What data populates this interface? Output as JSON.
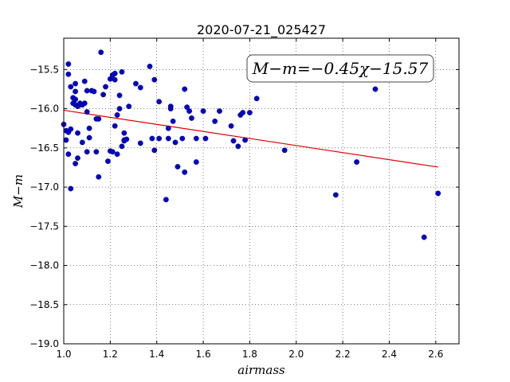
{
  "chart_data": {
    "type": "scatter",
    "title": "2020-07-21_025427",
    "xlabel": "airmass",
    "ylabel": "M−m",
    "xlim": [
      1.0,
      2.7
    ],
    "ylim": [
      -19.0,
      -15.1
    ],
    "invert_y": true,
    "grid": true,
    "x_ticks": [
      1.0,
      1.2,
      1.4,
      1.6,
      1.8,
      2.0,
      2.2,
      2.4,
      2.6
    ],
    "x_tick_labels": [
      "1.0",
      "1.2",
      "1.4",
      "1.6",
      "1.8",
      "2.0",
      "2.2",
      "2.4",
      "2.6"
    ],
    "y_ticks": [
      -15.5,
      -16.0,
      -16.5,
      -17.0,
      -17.5,
      -18.0,
      -18.5,
      -19.0
    ],
    "y_tick_labels": [
      "−15.5",
      "−16.0",
      "−16.5",
      "−17.0",
      "−17.5",
      "−18.0",
      "−18.5",
      "−19.0"
    ],
    "annotation": "M−m=−0.45χ−15.57",
    "colors": {
      "points": "#0000cc",
      "fit": "#e00000"
    },
    "fit": {
      "slope": -0.45,
      "intercept": -15.57,
      "x_range": [
        1.0,
        2.61
      ]
    },
    "points": [
      [
        1.0,
        -16.2
      ],
      [
        1.01,
        -16.28
      ],
      [
        1.01,
        -16.4
      ],
      [
        1.02,
        -16.3
      ],
      [
        1.02,
        -16.58
      ],
      [
        1.02,
        -15.43
      ],
      [
        1.02,
        -15.56
      ],
      [
        1.03,
        -15.72
      ],
      [
        1.03,
        -16.26
      ],
      [
        1.03,
        -17.02
      ],
      [
        1.04,
        -15.93
      ],
      [
        1.04,
        -15.86
      ],
      [
        1.05,
        -15.88
      ],
      [
        1.05,
        -15.68
      ],
      [
        1.05,
        -15.95
      ],
      [
        1.05,
        -16.7
      ],
      [
        1.05,
        -15.78
      ],
      [
        1.06,
        -16.31
      ],
      [
        1.06,
        -16.63
      ],
      [
        1.06,
        -15.97
      ],
      [
        1.07,
        -15.95
      ],
      [
        1.07,
        -15.93
      ],
      [
        1.08,
        -15.95
      ],
      [
        1.08,
        -16.43
      ],
      [
        1.09,
        -15.65
      ],
      [
        1.09,
        -15.93
      ],
      [
        1.1,
        -16.04
      ],
      [
        1.1,
        -16.55
      ],
      [
        1.1,
        -15.77
      ],
      [
        1.11,
        -16.37
      ],
      [
        1.11,
        -16.25
      ],
      [
        1.12,
        -15.77
      ],
      [
        1.13,
        -15.78
      ],
      [
        1.14,
        -16.13
      ],
      [
        1.14,
        -16.55
      ],
      [
        1.15,
        -16.13
      ],
      [
        1.15,
        -16.87
      ],
      [
        1.16,
        -15.28
      ],
      [
        1.17,
        -15.82
      ],
      [
        1.18,
        -15.72
      ],
      [
        1.19,
        -16.67
      ],
      [
        1.2,
        -16.54
      ],
      [
        1.2,
        -15.62
      ],
      [
        1.21,
        -15.57
      ],
      [
        1.21,
        -16.55
      ],
      [
        1.22,
        -15.55
      ],
      [
        1.22,
        -16.22
      ],
      [
        1.22,
        -15.63
      ],
      [
        1.23,
        -16.08
      ],
      [
        1.23,
        -16.58
      ],
      [
        1.24,
        -15.83
      ],
      [
        1.24,
        -16.0
      ],
      [
        1.25,
        -15.53
      ],
      [
        1.25,
        -16.48
      ],
      [
        1.26,
        -16.41
      ],
      [
        1.26,
        -16.4
      ],
      [
        1.26,
        -16.31
      ],
      [
        1.27,
        -16.39
      ],
      [
        1.28,
        -15.97
      ],
      [
        1.31,
        -15.68
      ],
      [
        1.33,
        -15.73
      ],
      [
        1.33,
        -16.44
      ],
      [
        1.37,
        -15.46
      ],
      [
        1.38,
        -16.38
      ],
      [
        1.39,
        -15.63
      ],
      [
        1.39,
        -16.53
      ],
      [
        1.41,
        -16.38
      ],
      [
        1.41,
        -15.91
      ],
      [
        1.44,
        -17.16
      ],
      [
        1.45,
        -16.38
      ],
      [
        1.45,
        -16.25
      ],
      [
        1.46,
        -15.97
      ],
      [
        1.46,
        -16.0
      ],
      [
        1.47,
        -16.16
      ],
      [
        1.48,
        -16.43
      ],
      [
        1.49,
        -16.74
      ],
      [
        1.51,
        -16.38
      ],
      [
        1.52,
        -16.81
      ],
      [
        1.52,
        -15.75
      ],
      [
        1.53,
        -15.98
      ],
      [
        1.54,
        -16.03
      ],
      [
        1.55,
        -16.12
      ],
      [
        1.57,
        -16.38
      ],
      [
        1.57,
        -16.68
      ],
      [
        1.6,
        -16.03
      ],
      [
        1.61,
        -16.38
      ],
      [
        1.65,
        -16.16
      ],
      [
        1.67,
        -16.03
      ],
      [
        1.72,
        -16.22
      ],
      [
        1.73,
        -16.41
      ],
      [
        1.75,
        -16.48
      ],
      [
        1.76,
        -16.08
      ],
      [
        1.77,
        -16.05
      ],
      [
        1.78,
        -16.4
      ],
      [
        1.8,
        -16.05
      ],
      [
        1.83,
        -15.87
      ],
      [
        1.95,
        -16.53
      ],
      [
        2.17,
        -17.1
      ],
      [
        2.26,
        -16.68
      ],
      [
        2.34,
        -15.75
      ],
      [
        2.55,
        -17.64
      ],
      [
        2.61,
        -17.08
      ]
    ]
  }
}
